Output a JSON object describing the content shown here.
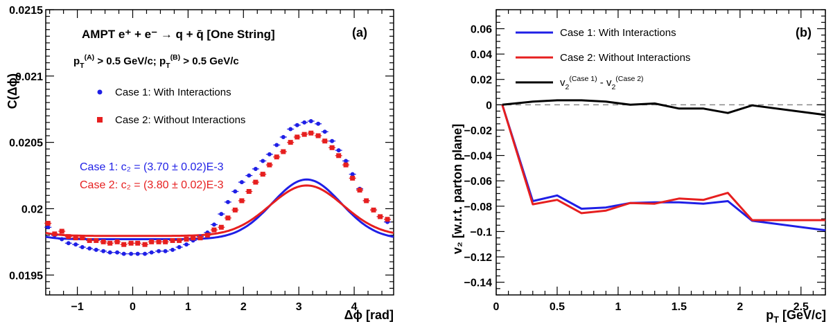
{
  "colors": {
    "case1": "#1f1fe6",
    "case2": "#e61f1f",
    "diff": "#000000",
    "zero_line": "#888888"
  },
  "chart_data": [
    {
      "type": "scatter",
      "panel_label": "(a)",
      "header": {
        "line1": "AMPT e⁺ + e⁻ → q + q̄  [One String]",
        "line2": "p_T^(A) > 0.5 GeV/c; p_T^(B) > 0.5 GeV/c"
      },
      "xlabel": "Δϕ [rad]",
      "ylabel": "C(Δϕ)",
      "xlim": [
        -1.5708,
        4.7124
      ],
      "ylim": [
        0.01935,
        0.0215
      ],
      "xticks": [
        -1,
        0,
        1,
        2,
        3,
        4
      ],
      "yticks": [
        0.0195,
        0.02,
        0.0205,
        0.021,
        0.0215
      ],
      "ytick_labels": [
        "0.0195",
        "0.02",
        "0.0205",
        "0.021",
        "0.0215"
      ],
      "legend": [
        {
          "label": "Case 1: With Interactions",
          "marker": "circle",
          "color": "#1f1fe6"
        },
        {
          "label": "Case 2: Without Interactions",
          "marker": "square",
          "color": "#e61f1f"
        }
      ],
      "fit_labels": [
        {
          "text": "Case 1: c₂ = (3.70 ± 0.02)E-3",
          "color": "#1f1fe6"
        },
        {
          "text": "Case 2: c₂ = (3.80 ± 0.02)E-3",
          "color": "#e61f1f"
        }
      ],
      "series": [
        {
          "name": "Case 1: With Interactions",
          "marker": "circle",
          "fit": {
            "mean": 0.01977,
            "amplitude": 0.00045,
            "width": 0.62
          },
          "points": [
            [
              -1.53,
              0.01986
            ],
            [
              -1.41,
              0.0198
            ],
            [
              -1.28,
              0.01977
            ],
            [
              -1.16,
              0.01974
            ],
            [
              -1.03,
              0.01973
            ],
            [
              -0.91,
              0.01971
            ],
            [
              -0.78,
              0.0197
            ],
            [
              -0.66,
              0.01969
            ],
            [
              -0.53,
              0.01968
            ],
            [
              -0.41,
              0.01967
            ],
            [
              -0.28,
              0.01967
            ],
            [
              -0.16,
              0.01966
            ],
            [
              -0.03,
              0.01966
            ],
            [
              0.09,
              0.01966
            ],
            [
              0.22,
              0.01966
            ],
            [
              0.34,
              0.01967
            ],
            [
              0.47,
              0.01968
            ],
            [
              0.59,
              0.01968
            ],
            [
              0.72,
              0.01969
            ],
            [
              0.84,
              0.01971
            ],
            [
              0.97,
              0.01973
            ],
            [
              1.09,
              0.01976
            ],
            [
              1.22,
              0.01979
            ],
            [
              1.35,
              0.01982
            ],
            [
              1.47,
              0.01988
            ],
            [
              1.6,
              0.01996
            ],
            [
              1.72,
              0.02005
            ],
            [
              1.85,
              0.02013
            ],
            [
              1.97,
              0.0202
            ],
            [
              2.1,
              0.02025
            ],
            [
              2.22,
              0.0203
            ],
            [
              2.35,
              0.02036
            ],
            [
              2.47,
              0.02041
            ],
            [
              2.6,
              0.02048
            ],
            [
              2.72,
              0.02054
            ],
            [
              2.85,
              0.0206
            ],
            [
              2.97,
              0.02063
            ],
            [
              3.1,
              0.02065
            ],
            [
              3.22,
              0.02066
            ],
            [
              3.35,
              0.02064
            ],
            [
              3.47,
              0.02058
            ],
            [
              3.6,
              0.02051
            ],
            [
              3.72,
              0.02044
            ],
            [
              3.85,
              0.02036
            ],
            [
              3.97,
              0.02026
            ],
            [
              4.1,
              0.02015
            ],
            [
              4.22,
              0.02006
            ],
            [
              4.35,
              0.01999
            ],
            [
              4.47,
              0.01994
            ],
            [
              4.6,
              0.0199
            ]
          ]
        },
        {
          "name": "Case 2: Without Interactions",
          "marker": "square",
          "fit": {
            "mean": 0.019795,
            "amplitude": 0.00038,
            "width": 0.66
          },
          "points": [
            [
              -1.53,
              0.01989
            ],
            [
              -1.41,
              0.01981
            ],
            [
              -1.28,
              0.01983
            ],
            [
              -1.16,
              0.01979
            ],
            [
              -1.03,
              0.01978
            ],
            [
              -0.91,
              0.01978
            ],
            [
              -0.78,
              0.01976
            ],
            [
              -0.66,
              0.01976
            ],
            [
              -0.53,
              0.01975
            ],
            [
              -0.41,
              0.01974
            ],
            [
              -0.28,
              0.01975
            ],
            [
              -0.16,
              0.01973
            ],
            [
              -0.03,
              0.01974
            ],
            [
              0.09,
              0.01974
            ],
            [
              0.22,
              0.01973
            ],
            [
              0.34,
              0.01975
            ],
            [
              0.47,
              0.01975
            ],
            [
              0.59,
              0.01975
            ],
            [
              0.72,
              0.01976
            ],
            [
              0.84,
              0.01976
            ],
            [
              0.97,
              0.01977
            ],
            [
              1.09,
              0.01978
            ],
            [
              1.22,
              0.01978
            ],
            [
              1.35,
              0.0198
            ],
            [
              1.47,
              0.01984
            ],
            [
              1.6,
              0.01986
            ],
            [
              1.72,
              0.01993
            ],
            [
              1.85,
              0.01999
            ],
            [
              1.97,
              0.02006
            ],
            [
              2.1,
              0.02013
            ],
            [
              2.22,
              0.0202
            ],
            [
              2.35,
              0.02026
            ],
            [
              2.47,
              0.02033
            ],
            [
              2.6,
              0.02039
            ],
            [
              2.72,
              0.02043
            ],
            [
              2.85,
              0.0205
            ],
            [
              2.97,
              0.02054
            ],
            [
              3.1,
              0.02056
            ],
            [
              3.22,
              0.02057
            ],
            [
              3.35,
              0.02055
            ],
            [
              3.47,
              0.02051
            ],
            [
              3.6,
              0.02046
            ],
            [
              3.72,
              0.0204
            ],
            [
              3.85,
              0.02033
            ],
            [
              3.97,
              0.02023
            ],
            [
              4.1,
              0.02014
            ],
            [
              4.22,
              0.02006
            ],
            [
              4.35,
              0.01999
            ],
            [
              4.47,
              0.01994
            ],
            [
              4.6,
              0.01992
            ]
          ]
        }
      ]
    },
    {
      "type": "line",
      "panel_label": "(b)",
      "xlabel": "p_T [GeV/c]",
      "ylabel": "v₂ [w.r.t. parton plane]",
      "xlim": [
        0,
        2.7
      ],
      "ylim": [
        -0.15,
        0.075
      ],
      "xticks": [
        0,
        0.5,
        1,
        1.5,
        2,
        2.5
      ],
      "xtick_labels": [
        "0",
        "0.5",
        "1",
        "1.5",
        "2",
        "2.5"
      ],
      "yticks": [
        -0.14,
        -0.12,
        -0.1,
        -0.08,
        -0.06,
        -0.04,
        -0.02,
        0,
        0.02,
        0.04,
        0.06
      ],
      "ytick_labels": [
        "−0.14",
        "−0.12",
        "−0.1",
        "−0.08",
        "−0.06",
        "−0.04",
        "−0.02",
        "0",
        "0.02",
        "0.04",
        "0.06"
      ],
      "reference_line": 0,
      "legend": [
        {
          "label": "Case 1: With Interactions",
          "color": "#1f1fe6"
        },
        {
          "label": "Case 2: Without Interactions",
          "color": "#e61f1f"
        },
        {
          "label": "v₂^(Case 1) - v₂^(Case 2)",
          "color": "#000000"
        }
      ],
      "series": [
        {
          "name": "Case 1: With Interactions",
          "x": [
            0.05,
            0.3,
            0.5,
            0.7,
            0.9,
            1.1,
            1.3,
            1.5,
            1.7,
            1.9,
            2.1,
            2.7
          ],
          "y": [
            0,
            -0.076,
            -0.0715,
            -0.082,
            -0.081,
            -0.0775,
            -0.077,
            -0.077,
            -0.078,
            -0.076,
            -0.0915,
            -0.099
          ]
        },
        {
          "name": "Case 2: Without Interactions",
          "x": [
            0.05,
            0.3,
            0.5,
            0.7,
            0.9,
            1.1,
            1.3,
            1.5,
            1.7,
            1.9,
            2.1,
            2.7
          ],
          "y": [
            0,
            -0.0785,
            -0.075,
            -0.0855,
            -0.0835,
            -0.0775,
            -0.078,
            -0.074,
            -0.075,
            -0.0695,
            -0.091,
            -0.091
          ]
        },
        {
          "name": "v₂^(Case 1) - v₂^(Case 2)",
          "x": [
            0.05,
            0.3,
            0.5,
            0.7,
            0.9,
            1.1,
            1.3,
            1.5,
            1.7,
            1.9,
            2.1,
            2.7
          ],
          "y": [
            0,
            0.0025,
            0.0035,
            0.0035,
            0.0025,
            0,
            0.001,
            -0.003,
            -0.003,
            -0.0065,
            -0.0005,
            -0.008
          ]
        }
      ]
    }
  ]
}
